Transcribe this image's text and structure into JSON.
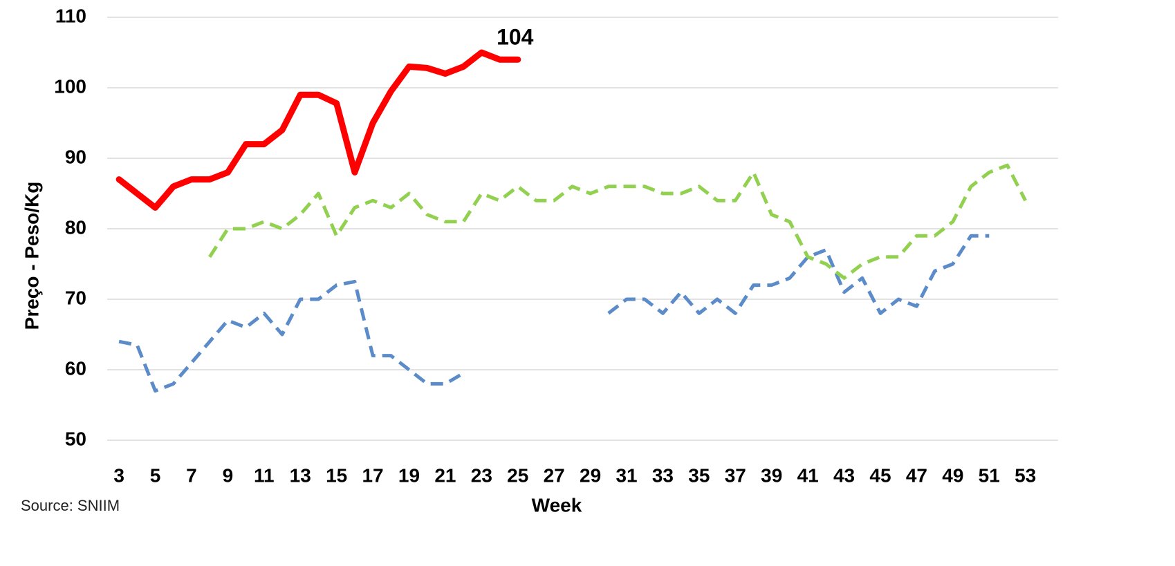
{
  "chart_data": {
    "type": "line",
    "y_label": "Preço - Peso/Kg",
    "x_label": "Week",
    "source": "Source: SNIIM",
    "x": [
      3,
      4,
      5,
      6,
      7,
      8,
      9,
      10,
      11,
      12,
      13,
      14,
      15,
      16,
      17,
      18,
      19,
      20,
      21,
      22,
      23,
      24,
      25,
      26,
      27,
      28,
      29,
      30,
      31,
      32,
      33,
      34,
      35,
      36,
      37,
      38,
      39,
      40,
      41,
      42,
      43,
      44,
      45,
      46,
      47,
      48,
      49,
      50,
      51,
      52,
      53
    ],
    "xlim": [
      2.5,
      54.5
    ],
    "xticks": [
      3,
      5,
      7,
      9,
      11,
      13,
      15,
      17,
      19,
      21,
      23,
      25,
      27,
      29,
      31,
      33,
      35,
      37,
      39,
      41,
      43,
      45,
      47,
      49,
      51,
      53
    ],
    "ylim": [
      50,
      110
    ],
    "yticks": [
      50,
      60,
      70,
      80,
      90,
      100,
      110
    ],
    "grid": true,
    "series": [
      {
        "color": "#5b8cc9",
        "dashed": true,
        "width": 5,
        "values": [
          64,
          63.5,
          57,
          58,
          61,
          64,
          67,
          66,
          68,
          65,
          70,
          70,
          72,
          72.5,
          62,
          62,
          60,
          58,
          58,
          59.5,
          null,
          null,
          null,
          null,
          null,
          null,
          null,
          68,
          70,
          70,
          68,
          71,
          68,
          70,
          68,
          72,
          72,
          73,
          76,
          77,
          71,
          73,
          68,
          70,
          69,
          74,
          75,
          79,
          79,
          null,
          null
        ]
      },
      {
        "color": "#92d050",
        "dashed": true,
        "width": 5,
        "values": [
          null,
          null,
          null,
          null,
          null,
          76,
          80,
          80,
          81,
          80,
          82,
          85,
          79,
          83,
          84,
          83,
          85,
          82,
          81,
          81,
          85,
          84,
          86,
          84,
          84,
          86,
          85,
          86,
          86,
          86,
          85,
          85,
          86,
          84,
          84,
          88,
          82,
          81,
          76,
          75,
          73,
          75,
          76,
          76,
          79,
          79,
          81,
          86,
          88,
          89,
          84
        ]
      },
      {
        "color": "#ff0000",
        "dashed": false,
        "width": 9,
        "values": [
          87,
          85,
          83,
          86,
          87,
          87,
          88,
          92,
          92,
          94,
          99,
          99,
          97.8,
          88,
          95,
          99.5,
          103,
          102.8,
          102,
          103,
          105,
          104,
          104,
          null,
          null,
          null,
          null,
          null,
          null,
          null,
          null,
          null,
          null,
          null,
          null,
          null,
          null,
          null,
          null,
          null,
          null,
          null,
          null,
          null,
          null,
          null,
          null,
          null,
          null,
          null,
          null
        ],
        "value_labels": [
          null,
          null,
          null,
          null,
          null,
          null,
          null,
          null,
          null,
          null,
          null,
          null,
          null,
          null,
          null,
          null,
          null,
          null,
          null,
          null,
          null,
          null,
          "104",
          null,
          null,
          null,
          null,
          null,
          null,
          null,
          null,
          null,
          null,
          null,
          null,
          null,
          null,
          null,
          null,
          null,
          null,
          null,
          null,
          null,
          null,
          null,
          null,
          null,
          null,
          null,
          null
        ]
      }
    ]
  }
}
